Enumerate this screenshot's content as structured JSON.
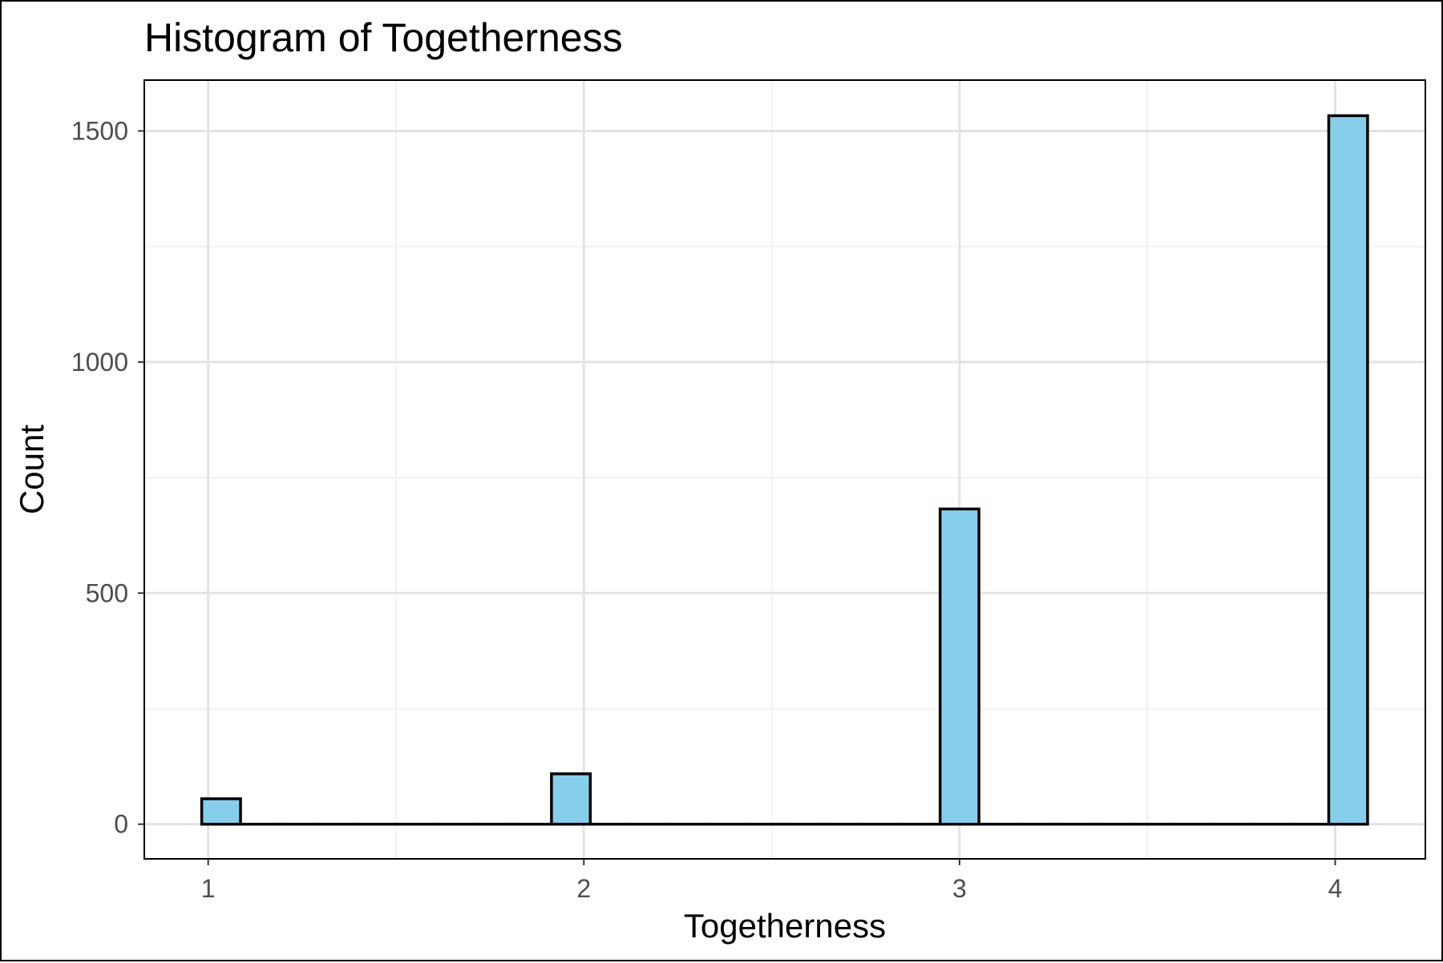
{
  "chart_data": {
    "type": "bar",
    "title": "Histogram of Togetherness",
    "xlabel": "Togetherness",
    "ylabel": "Count",
    "x_ticks": [
      1,
      2,
      3,
      4
    ],
    "y_ticks": [
      0,
      500,
      1000,
      1500
    ],
    "xlim": [
      0.83,
      4.24
    ],
    "ylim": [
      -75,
      1610
    ],
    "bin_width": 0.1034,
    "bins": [
      {
        "x": 1.0345,
        "count": 55
      },
      {
        "x": 1.1379,
        "count": 0
      },
      {
        "x": 1.2414,
        "count": 0
      },
      {
        "x": 1.3448,
        "count": 0
      },
      {
        "x": 1.4483,
        "count": 0
      },
      {
        "x": 1.5517,
        "count": 0
      },
      {
        "x": 1.6552,
        "count": 0
      },
      {
        "x": 1.7586,
        "count": 0
      },
      {
        "x": 1.8621,
        "count": 0
      },
      {
        "x": 1.9655,
        "count": 109
      },
      {
        "x": 2.069,
        "count": 0
      },
      {
        "x": 2.1724,
        "count": 0
      },
      {
        "x": 2.2759,
        "count": 0
      },
      {
        "x": 2.3793,
        "count": 0
      },
      {
        "x": 2.4828,
        "count": 0
      },
      {
        "x": 2.5862,
        "count": 0
      },
      {
        "x": 2.6897,
        "count": 0
      },
      {
        "x": 2.7931,
        "count": 0
      },
      {
        "x": 2.8966,
        "count": 0
      },
      {
        "x": 3.0,
        "count": 682
      },
      {
        "x": 3.1034,
        "count": 0
      },
      {
        "x": 3.2069,
        "count": 0
      },
      {
        "x": 3.3103,
        "count": 0
      },
      {
        "x": 3.4138,
        "count": 0
      },
      {
        "x": 3.5172,
        "count": 0
      },
      {
        "x": 3.6207,
        "count": 0
      },
      {
        "x": 3.7241,
        "count": 0
      },
      {
        "x": 3.8276,
        "count": 0
      },
      {
        "x": 3.931,
        "count": 0
      },
      {
        "x": 4.0345,
        "count": 1533
      }
    ],
    "grid": true,
    "colors": {
      "bar_fill": "#87CEEB",
      "bar_stroke": "#000000",
      "grid_major": "#e3e3e3",
      "grid_minor": "#f1f1f1"
    }
  }
}
